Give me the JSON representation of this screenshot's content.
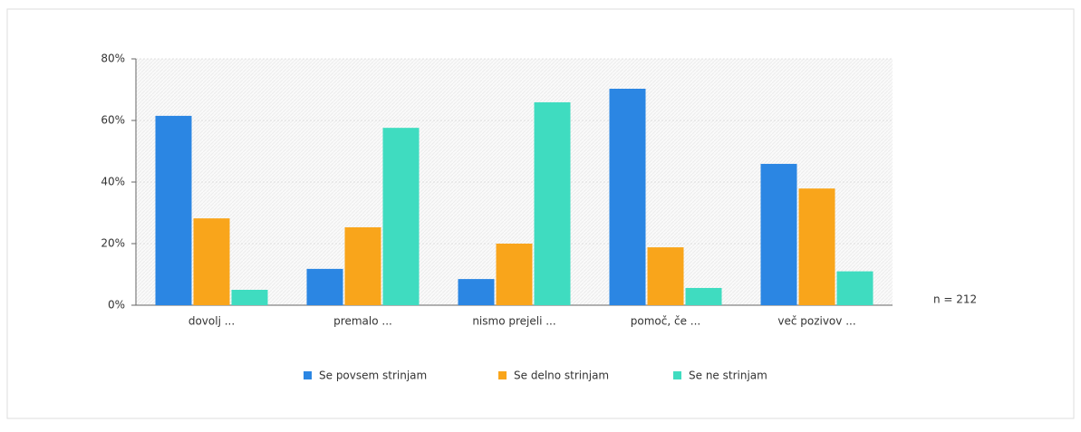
{
  "chart_data": {
    "type": "bar",
    "categories": [
      "dovolj ...",
      "premalo ...",
      "nismo prejeli ...",
      "pomoč, če ...",
      "več pozivov ..."
    ],
    "series": [
      {
        "name": "Se povsem strinjam",
        "color": "#2b86e3",
        "values": [
          61.5,
          11.8,
          8.5,
          70.3,
          45.9
        ]
      },
      {
        "name": "Se delno strinjam",
        "color": "#f9a51b",
        "values": [
          28.2,
          25.3,
          20,
          18.8,
          37.9
        ]
      },
      {
        "name": "Se ne strinjam",
        "color": "#3fdcc0",
        "values": [
          5,
          57.6,
          65.9,
          5.6,
          11
        ]
      }
    ],
    "ylim": [
      0,
      80
    ],
    "yticks": [
      {
        "value": 0,
        "label": "0%"
      },
      {
        "value": 20,
        "label": "20%"
      },
      {
        "value": 40,
        "label": "40%"
      },
      {
        "value": 60,
        "label": "60%"
      },
      {
        "value": 80,
        "label": "80%"
      }
    ],
    "grid": true,
    "annotation": "n = 212"
  }
}
